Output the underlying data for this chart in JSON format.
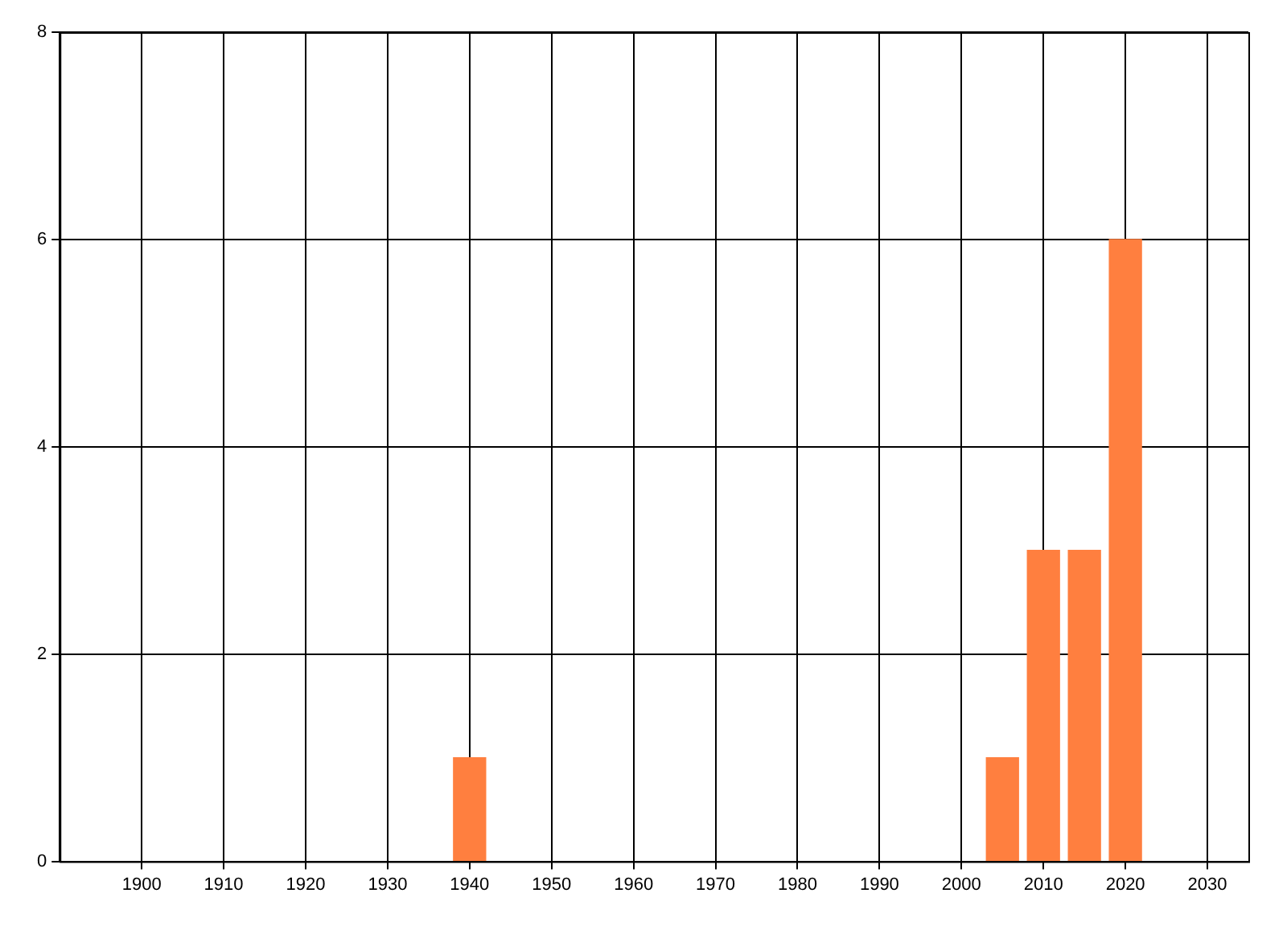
{
  "chart_data": {
    "type": "bar",
    "x": [
      1940,
      2005,
      2010,
      2015,
      2020
    ],
    "values": [
      1,
      1,
      3,
      3,
      6
    ],
    "color": "#ff7f3f",
    "xlim": [
      1890,
      2035
    ],
    "xticks": [
      1900,
      1910,
      1920,
      1930,
      1940,
      1950,
      1960,
      1970,
      1980,
      1990,
      2000,
      2010,
      2020,
      2030
    ],
    "ylim": [
      0,
      8
    ],
    "yticks": [
      0,
      2,
      4,
      6,
      8
    ],
    "grid": true,
    "legend": false
  }
}
